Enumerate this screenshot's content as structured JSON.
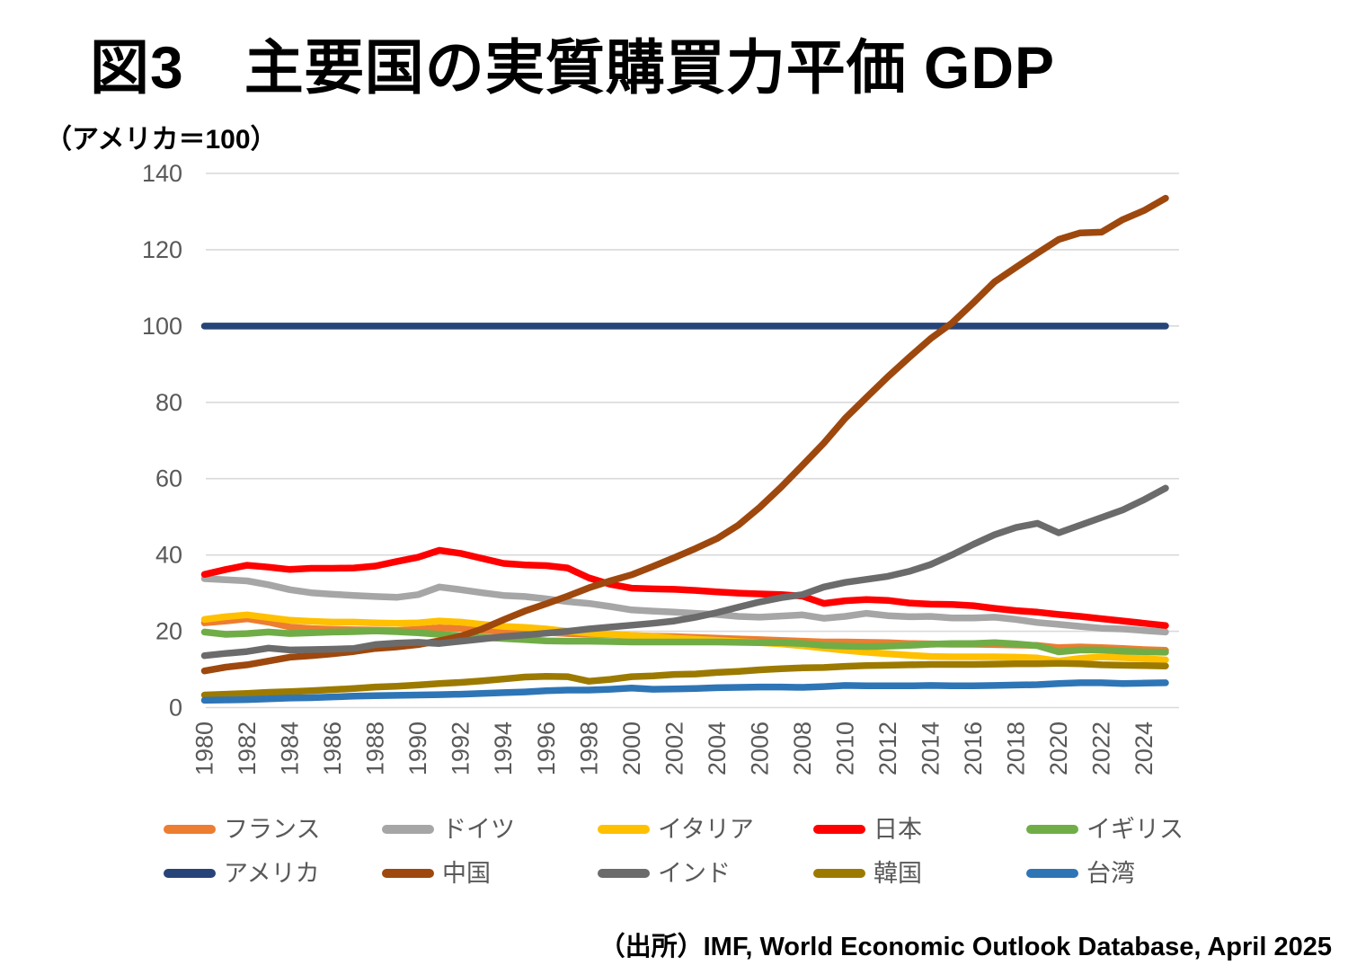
{
  "page": {
    "title": "図3　主要国の実質購買力平価 GDP",
    "subtitle": "（アメリカ＝100）",
    "source": "（出所）IMF, World Economic Outlook Database, April 2025"
  },
  "chart_data": {
    "type": "line",
    "title": "図3　主要国の実質購買力平価 GDP",
    "unit_note": "アメリカ＝100",
    "xlabel": "",
    "ylabel": "",
    "ylim": [
      0,
      140
    ],
    "y_ticks": [
      0,
      20,
      40,
      60,
      80,
      100,
      120,
      140
    ],
    "x_tick_labels": [
      "1980",
      "1982",
      "1984",
      "1986",
      "1988",
      "1990",
      "1992",
      "1994",
      "1996",
      "1998",
      "2000",
      "2002",
      "2004",
      "2006",
      "2008",
      "2010",
      "2012",
      "2014",
      "2016",
      "2018",
      "2020",
      "2022",
      "2024"
    ],
    "grid": true,
    "legend_position": "bottom",
    "grid_color": "#D9D9D9",
    "tick_label_color": "#595959",
    "x": [
      1980,
      1981,
      1982,
      1983,
      1984,
      1985,
      1986,
      1987,
      1988,
      1989,
      1990,
      1991,
      1992,
      1993,
      1994,
      1995,
      1996,
      1997,
      1998,
      1999,
      2000,
      2001,
      2002,
      2003,
      2004,
      2005,
      2006,
      2007,
      2008,
      2009,
      2010,
      2011,
      2012,
      2013,
      2014,
      2015,
      2016,
      2017,
      2018,
      2019,
      2020,
      2021,
      2022,
      2023,
      2024,
      2025
    ],
    "series": [
      {
        "key": "france",
        "label": "フランス",
        "color": "#ED7D31",
        "values": [
          22.2,
          22.7,
          23.3,
          22.4,
          21.1,
          20.7,
          20.5,
          20.4,
          20.3,
          20.2,
          20.5,
          20.9,
          20.7,
          20.2,
          20.0,
          19.9,
          19.7,
          19.4,
          19.2,
          19.1,
          18.9,
          18.7,
          18.6,
          18.4,
          18.2,
          18.0,
          17.8,
          17.6,
          17.4,
          17.2,
          17.2,
          17.1,
          17.0,
          16.8,
          16.7,
          16.6,
          16.6,
          16.5,
          16.4,
          16.3,
          15.7,
          15.9,
          15.7,
          15.5,
          15.2,
          15.0
        ]
      },
      {
        "key": "germany",
        "label": "ドイツ",
        "color": "#A6A6A6",
        "values": [
          33.8,
          33.5,
          33.2,
          32.2,
          30.9,
          30.1,
          29.7,
          29.4,
          29.1,
          28.9,
          29.6,
          31.6,
          30.9,
          30.1,
          29.4,
          29.1,
          28.5,
          27.8,
          27.3,
          26.5,
          25.6,
          25.3,
          25.0,
          24.7,
          24.4,
          23.9,
          23.7,
          24.0,
          24.3,
          23.4,
          23.9,
          24.7,
          24.1,
          23.8,
          23.9,
          23.5,
          23.5,
          23.7,
          23.1,
          22.3,
          21.8,
          21.3,
          20.8,
          20.6,
          20.2,
          19.8
        ]
      },
      {
        "key": "italy",
        "label": "イタリア",
        "color": "#FFC000",
        "values": [
          23.1,
          23.8,
          24.3,
          23.6,
          22.9,
          22.6,
          22.4,
          22.4,
          22.2,
          22.1,
          22.2,
          22.7,
          22.4,
          21.8,
          21.3,
          21.0,
          20.6,
          20.0,
          19.5,
          19.2,
          18.9,
          18.6,
          18.2,
          17.9,
          17.6,
          17.3,
          17.0,
          16.7,
          16.2,
          15.6,
          15.0,
          14.5,
          14.1,
          13.7,
          13.4,
          13.3,
          13.3,
          13.3,
          13.2,
          13.0,
          12.2,
          12.9,
          13.3,
          13.1,
          12.8,
          12.5
        ]
      },
      {
        "key": "japan",
        "label": "日本",
        "color": "#FF0000",
        "values": [
          34.9,
          36.2,
          37.3,
          36.8,
          36.2,
          36.5,
          36.5,
          36.6,
          37.1,
          38.3,
          39.4,
          41.2,
          40.4,
          39.1,
          37.8,
          37.4,
          37.2,
          36.6,
          34.0,
          32.3,
          31.3,
          31.1,
          31.0,
          30.7,
          30.3,
          30.0,
          29.8,
          29.6,
          29.2,
          27.3,
          28.0,
          28.3,
          28.1,
          27.4,
          27.1,
          27.0,
          26.7,
          26.0,
          25.4,
          25.0,
          24.4,
          23.9,
          23.3,
          22.7,
          22.1,
          21.5
        ]
      },
      {
        "key": "uk",
        "label": "イギリス",
        "color": "#70AD47",
        "values": [
          19.8,
          19.2,
          19.4,
          19.8,
          19.4,
          19.6,
          19.8,
          19.9,
          20.1,
          19.9,
          19.6,
          19.2,
          18.8,
          18.4,
          18.1,
          17.8,
          17.5,
          17.4,
          17.4,
          17.3,
          17.2,
          17.2,
          17.2,
          17.2,
          17.2,
          17.1,
          17.0,
          17.0,
          16.8,
          16.3,
          16.1,
          16.0,
          16.1,
          16.3,
          16.6,
          16.8,
          16.8,
          17.0,
          16.7,
          16.2,
          14.6,
          15.1,
          15.1,
          14.8,
          14.6,
          14.5
        ]
      },
      {
        "key": "usa",
        "label": "アメリカ",
        "color": "#264478",
        "values": [
          100,
          100,
          100,
          100,
          100,
          100,
          100,
          100,
          100,
          100,
          100,
          100,
          100,
          100,
          100,
          100,
          100,
          100,
          100,
          100,
          100,
          100,
          100,
          100,
          100,
          100,
          100,
          100,
          100,
          100,
          100,
          100,
          100,
          100,
          100,
          100,
          100,
          100,
          100,
          100,
          100,
          100,
          100,
          100,
          100,
          100
        ]
      },
      {
        "key": "china",
        "label": "中国",
        "color": "#9E480E",
        "values": [
          9.6,
          10.6,
          11.2,
          12.2,
          13.2,
          13.6,
          14.1,
          14.7,
          15.5,
          15.9,
          16.5,
          17.5,
          18.7,
          20.6,
          23.0,
          25.3,
          27.2,
          29.2,
          31.4,
          33.2,
          34.8,
          37.0,
          39.3,
          41.7,
          44.3,
          47.8,
          52.5,
          57.8,
          63.5,
          69.3,
          75.8,
          81.3,
          86.7,
          91.8,
          96.7,
          100.8,
          106.1,
          111.6,
          115.4,
          119.1,
          122.7,
          124.4,
          124.6,
          127.9,
          130.3,
          133.5
        ]
      },
      {
        "key": "india",
        "label": "インド",
        "color": "#6B6B6B",
        "values": [
          13.6,
          14.2,
          14.7,
          15.6,
          15.1,
          15.2,
          15.3,
          15.5,
          16.5,
          16.9,
          17.1,
          16.8,
          17.4,
          18.0,
          18.6,
          19.0,
          19.5,
          20.0,
          20.6,
          21.1,
          21.6,
          22.1,
          22.7,
          23.7,
          24.9,
          26.3,
          27.7,
          28.8,
          29.6,
          31.6,
          32.8,
          33.6,
          34.4,
          35.7,
          37.5,
          40.0,
          42.8,
          45.3,
          47.2,
          48.3,
          45.8,
          47.8,
          49.8,
          51.8,
          54.5,
          57.5
        ]
      },
      {
        "key": "korea",
        "label": "韓国",
        "color": "#9C7A00",
        "values": [
          3.3,
          3.5,
          3.7,
          4.0,
          4.2,
          4.4,
          4.7,
          5.0,
          5.4,
          5.6,
          5.9,
          6.3,
          6.6,
          7.0,
          7.5,
          8.0,
          8.2,
          8.1,
          6.9,
          7.4,
          8.1,
          8.3,
          8.7,
          8.8,
          9.2,
          9.5,
          9.9,
          10.2,
          10.4,
          10.5,
          10.8,
          11.0,
          11.1,
          11.2,
          11.3,
          11.3,
          11.3,
          11.4,
          11.5,
          11.5,
          11.6,
          11.5,
          11.2,
          11.1,
          11.0,
          10.9
        ]
      },
      {
        "key": "taiwan",
        "label": "台湾",
        "color": "#2E75B6",
        "values": [
          1.9,
          2.0,
          2.1,
          2.3,
          2.5,
          2.6,
          2.8,
          3.0,
          3.1,
          3.2,
          3.3,
          3.4,
          3.5,
          3.7,
          3.9,
          4.1,
          4.4,
          4.6,
          4.6,
          4.8,
          5.1,
          4.8,
          4.9,
          5.0,
          5.2,
          5.3,
          5.4,
          5.4,
          5.3,
          5.5,
          5.8,
          5.7,
          5.7,
          5.7,
          5.8,
          5.7,
          5.7,
          5.8,
          5.9,
          6.0,
          6.3,
          6.5,
          6.5,
          6.3,
          6.4,
          6.5
        ]
      }
    ]
  }
}
